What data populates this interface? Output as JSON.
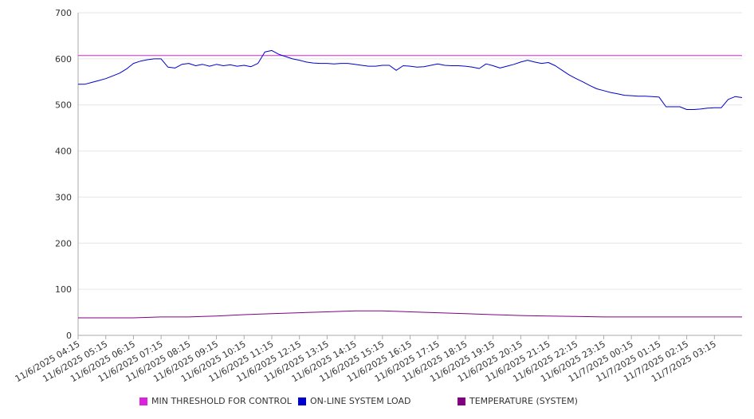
{
  "chart_data": {
    "type": "line",
    "title": "",
    "xlabel": "",
    "ylabel": "",
    "ylim": [
      0,
      700
    ],
    "y_ticks": [
      0,
      100,
      200,
      300,
      400,
      500,
      600,
      700
    ],
    "x_tick_labels": [
      "11/6/2025 04:15",
      "11/6/2025 05:15",
      "11/6/2025 06:15",
      "11/6/2025 07:15",
      "11/6/2025 08:15",
      "11/6/2025 09:15",
      "11/6/2025 10:15",
      "11/6/2025 11:15",
      "11/6/2025 12:15",
      "11/6/2025 13:15",
      "11/6/2025 14:15",
      "11/6/2025 15:15",
      "11/6/2025 16:15",
      "11/6/2025 17:15",
      "11/6/2025 18:15",
      "11/6/2025 19:15",
      "11/6/2025 20:15",
      "11/6/2025 21:15",
      "11/6/2025 22:15",
      "11/6/2025 23:15",
      "11/7/2025 00:15",
      "11/7/2025 01:15",
      "11/7/2025 02:15",
      "11/7/2025 03:15"
    ],
    "x_range": [
      "11/6/2025 04:15",
      "11/7/2025 04:15"
    ],
    "grid": "horizontal",
    "legend_position": "bottom",
    "series": [
      {
        "name": "MIN THRESHOLD FOR CONTROL",
        "color": "#dd22dd",
        "points": [
          [
            "11/6/2025 04:15",
            607
          ],
          [
            "11/7/2025 04:15",
            607
          ]
        ]
      },
      {
        "name": "ON-LINE SYSTEM LOAD",
        "color": "#0000cc",
        "points": [
          [
            "11/6/2025 04:15",
            545
          ],
          [
            "11/6/2025 04:30",
            545
          ],
          [
            "11/6/2025 04:45",
            549
          ],
          [
            "11/6/2025 05:00",
            553
          ],
          [
            "11/6/2025 05:15",
            557
          ],
          [
            "11/6/2025 05:30",
            563
          ],
          [
            "11/6/2025 05:45",
            569
          ],
          [
            "11/6/2025 06:00",
            578
          ],
          [
            "11/6/2025 06:15",
            590
          ],
          [
            "11/6/2025 06:30",
            595
          ],
          [
            "11/6/2025 06:45",
            598
          ],
          [
            "11/6/2025 07:00",
            600
          ],
          [
            "11/6/2025 07:15",
            600
          ],
          [
            "11/6/2025 07:30",
            582
          ],
          [
            "11/6/2025 07:45",
            580
          ],
          [
            "11/6/2025 08:00",
            588
          ],
          [
            "11/6/2025 08:15",
            590
          ],
          [
            "11/6/2025 08:30",
            585
          ],
          [
            "11/6/2025 08:45",
            588
          ],
          [
            "11/6/2025 09:00",
            584
          ],
          [
            "11/6/2025 09:15",
            588
          ],
          [
            "11/6/2025 09:30",
            585
          ],
          [
            "11/6/2025 09:45",
            587
          ],
          [
            "11/6/2025 10:00",
            584
          ],
          [
            "11/6/2025 10:15",
            586
          ],
          [
            "11/6/2025 10:30",
            583
          ],
          [
            "11/6/2025 10:45",
            590
          ],
          [
            "11/6/2025 11:00",
            615
          ],
          [
            "11/6/2025 11:15",
            618
          ],
          [
            "11/6/2025 11:30",
            610
          ],
          [
            "11/6/2025 11:45",
            605
          ],
          [
            "11/6/2025 12:00",
            600
          ],
          [
            "11/6/2025 12:15",
            597
          ],
          [
            "11/6/2025 12:30",
            593
          ],
          [
            "11/6/2025 12:45",
            591
          ],
          [
            "11/6/2025 13:00",
            590
          ],
          [
            "11/6/2025 13:15",
            590
          ],
          [
            "11/6/2025 13:30",
            589
          ],
          [
            "11/6/2025 13:45",
            590
          ],
          [
            "11/6/2025 14:00",
            590
          ],
          [
            "11/6/2025 14:15",
            588
          ],
          [
            "11/6/2025 14:30",
            586
          ],
          [
            "11/6/2025 14:45",
            584
          ],
          [
            "11/6/2025 15:00",
            584
          ],
          [
            "11/6/2025 15:15",
            586
          ],
          [
            "11/6/2025 15:30",
            586
          ],
          [
            "11/6/2025 15:45",
            575
          ],
          [
            "11/6/2025 16:00",
            585
          ],
          [
            "11/6/2025 16:15",
            584
          ],
          [
            "11/6/2025 16:30",
            582
          ],
          [
            "11/6/2025 16:45",
            583
          ],
          [
            "11/6/2025 17:00",
            586
          ],
          [
            "11/6/2025 17:15",
            589
          ],
          [
            "11/6/2025 17:30",
            586
          ],
          [
            "11/6/2025 17:45",
            585
          ],
          [
            "11/6/2025 18:00",
            585
          ],
          [
            "11/6/2025 18:15",
            584
          ],
          [
            "11/6/2025 18:30",
            582
          ],
          [
            "11/6/2025 18:45",
            579
          ],
          [
            "11/6/2025 19:00",
            589
          ],
          [
            "11/6/2025 19:15",
            585
          ],
          [
            "11/6/2025 19:30",
            580
          ],
          [
            "11/6/2025 19:45",
            584
          ],
          [
            "11/6/2025 20:00",
            588
          ],
          [
            "11/6/2025 20:15",
            593
          ],
          [
            "11/6/2025 20:30",
            597
          ],
          [
            "11/6/2025 20:45",
            593
          ],
          [
            "11/6/2025 21:00",
            590
          ],
          [
            "11/6/2025 21:15",
            592
          ],
          [
            "11/6/2025 21:30",
            585
          ],
          [
            "11/6/2025 21:45",
            575
          ],
          [
            "11/6/2025 22:00",
            565
          ],
          [
            "11/6/2025 22:15",
            557
          ],
          [
            "11/6/2025 22:30",
            550
          ],
          [
            "11/6/2025 22:45",
            542
          ],
          [
            "11/6/2025 23:00",
            535
          ],
          [
            "11/6/2025 23:15",
            531
          ],
          [
            "11/6/2025 23:30",
            527
          ],
          [
            "11/6/2025 23:45",
            524
          ],
          [
            "11/7/2025 00:00",
            521
          ],
          [
            "11/7/2025 00:15",
            520
          ],
          [
            "11/7/2025 00:30",
            519
          ],
          [
            "11/7/2025 00:45",
            519
          ],
          [
            "11/7/2025 01:00",
            518
          ],
          [
            "11/7/2025 01:15",
            517
          ],
          [
            "11/7/2025 01:30",
            496
          ],
          [
            "11/7/2025 01:45",
            496
          ],
          [
            "11/7/2025 02:00",
            496
          ],
          [
            "11/7/2025 02:15",
            490
          ],
          [
            "11/7/2025 02:30",
            490
          ],
          [
            "11/7/2025 02:45",
            491
          ],
          [
            "11/7/2025 03:00",
            493
          ],
          [
            "11/7/2025 03:15",
            494
          ],
          [
            "11/7/2025 03:30",
            494
          ],
          [
            "11/7/2025 03:45",
            512
          ],
          [
            "11/7/2025 04:00",
            518
          ],
          [
            "11/7/2025 04:15",
            516
          ]
        ]
      },
      {
        "name": "TEMPERATURE (SYSTEM)",
        "color": "#800080",
        "points": [
          [
            "11/6/2025 04:15",
            38
          ],
          [
            "11/6/2025 05:15",
            38
          ],
          [
            "11/6/2025 06:15",
            38
          ],
          [
            "11/6/2025 07:15",
            40
          ],
          [
            "11/6/2025 08:15",
            40
          ],
          [
            "11/6/2025 09:15",
            42
          ],
          [
            "11/6/2025 10:15",
            45
          ],
          [
            "11/6/2025 11:15",
            47
          ],
          [
            "11/6/2025 12:15",
            49
          ],
          [
            "11/6/2025 13:15",
            51
          ],
          [
            "11/6/2025 14:15",
            53
          ],
          [
            "11/6/2025 15:15",
            53
          ],
          [
            "11/6/2025 16:15",
            51
          ],
          [
            "11/6/2025 17:15",
            49
          ],
          [
            "11/6/2025 18:15",
            47
          ],
          [
            "11/6/2025 19:15",
            45
          ],
          [
            "11/6/2025 20:15",
            43
          ],
          [
            "11/6/2025 21:15",
            42
          ],
          [
            "11/6/2025 22:15",
            41
          ],
          [
            "11/6/2025 23:15",
            40
          ],
          [
            "11/7/2025 00:15",
            40
          ],
          [
            "11/7/2025 01:15",
            40
          ],
          [
            "11/7/2025 02:15",
            40
          ],
          [
            "11/7/2025 03:15",
            40
          ],
          [
            "11/7/2025 04:15",
            40
          ]
        ]
      }
    ]
  }
}
